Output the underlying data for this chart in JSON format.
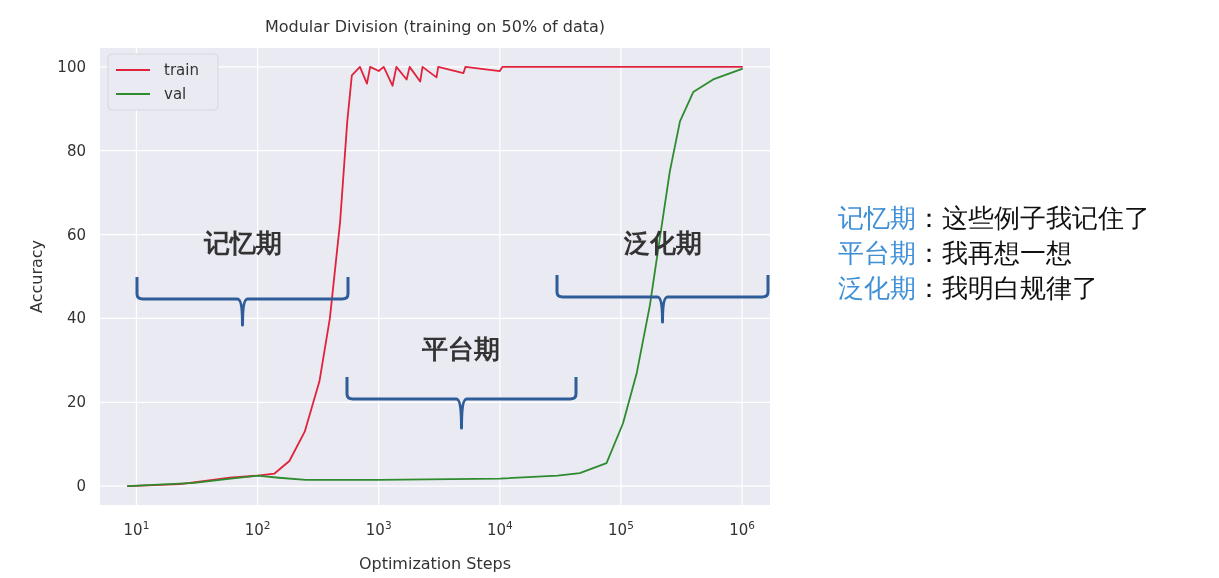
{
  "chart_data": {
    "type": "line",
    "title": "Modular Division (training on 50% of data)",
    "xlabel": "Optimization Steps",
    "ylabel": "Accuracy",
    "log": "x",
    "xlim": [
      5,
      1700000
    ],
    "ylim": [
      -4.5,
      104.5
    ],
    "xticks": [
      {
        "value": 10,
        "label": "10$^{1}$"
      },
      {
        "value": 100,
        "label": "10$^{2}$"
      },
      {
        "value": 1000,
        "label": "10$^{3}$"
      },
      {
        "value": 10000,
        "label": "10$^{4}$"
      },
      {
        "value": 100000,
        "label": "10$^{5}$"
      },
      {
        "value": 1000000,
        "label": "10$^{6}$"
      }
    ],
    "yticks": [
      0,
      20,
      40,
      60,
      80,
      100
    ],
    "grid": true,
    "legend": "top left",
    "line_style": "solid",
    "marker": "none",
    "series": [
      {
        "name": "train",
        "color": "#e0223c",
        "x": [
          8.5,
          23,
          59,
          100,
          138,
          183,
          245,
          324,
          395,
          480,
          550,
          600,
          700,
          800,
          850,
          1000,
          1100,
          1300,
          1400,
          1700,
          1800,
          2200,
          2300,
          3000,
          3100,
          5000,
          5200,
          10000,
          10500,
          1000000
        ],
        "values": [
          0,
          0.5,
          2,
          2.5,
          3,
          6,
          13,
          25,
          40,
          63,
          87,
          98,
          100,
          96,
          100,
          99,
          100,
          95.5,
          100,
          97,
          100,
          96.5,
          100,
          97.5,
          100,
          98.5,
          100,
          99,
          100,
          100
        ]
      },
      {
        "name": "val",
        "color": "#2e8b2e",
        "x": [
          8.5,
          30,
          60,
          100,
          150,
          250,
          1000,
          10000,
          30000,
          45700,
          76000,
          104000,
          135000,
          173000,
          209000,
          253000,
          307000,
          395000,
          577000,
          1000000
        ],
        "values": [
          0,
          0.8,
          1.8,
          2.5,
          2,
          1.5,
          1.5,
          1.8,
          2.5,
          3.1,
          5.5,
          15,
          27,
          43,
          59,
          75,
          87,
          94,
          97,
          99.5
        ]
      }
    ],
    "annotations": [
      "记忆期",
      "平台期",
      "泛化期",
      "记忆期：这些例子我记住了",
      "平台期：我再想一想",
      "泛化期：我明白规律了"
    ]
  }
}
